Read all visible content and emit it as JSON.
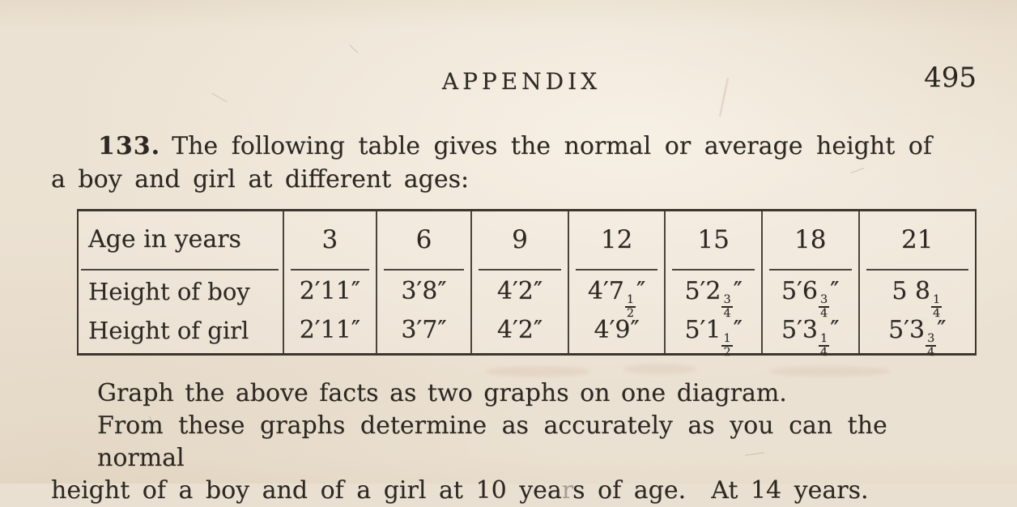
{
  "header": {
    "title": "APPENDIX",
    "page_number": "495"
  },
  "problem": {
    "number": "133.",
    "intro_line1": "The following table gives the normal or average height of",
    "intro_line2": "a boy and girl at different ages:"
  },
  "table": {
    "row_header_label": "Age in years",
    "ages": [
      "3",
      "6",
      "9",
      "12",
      "15",
      "18",
      "21"
    ],
    "rows": [
      {
        "label": "Height of boy",
        "values": [
          "2′11″",
          "3′8″",
          "4′2″",
          "4′7½″",
          "5′2¾″",
          "5′6¾″",
          "5 8¼"
        ]
      },
      {
        "label": "Height of girl",
        "values": [
          "2′11″",
          "3′7″",
          "4′2″",
          "4′9″",
          "5′1½″",
          "5′3¼″",
          "5′3¾″"
        ]
      }
    ]
  },
  "instructions": {
    "line1": "Graph the above facts as two graphs on one diagram.",
    "line2": "From these graphs determine as accurately as you can the normal",
    "line3_pre": "height of a boy and of a girl at 10 yea",
    "line3_faint": "r",
    "line3_post": "s of age.  At 14 years."
  },
  "colors": {
    "paper": "#eae0d1",
    "ink": "#2c2823",
    "table_rule": "#4b443a"
  }
}
